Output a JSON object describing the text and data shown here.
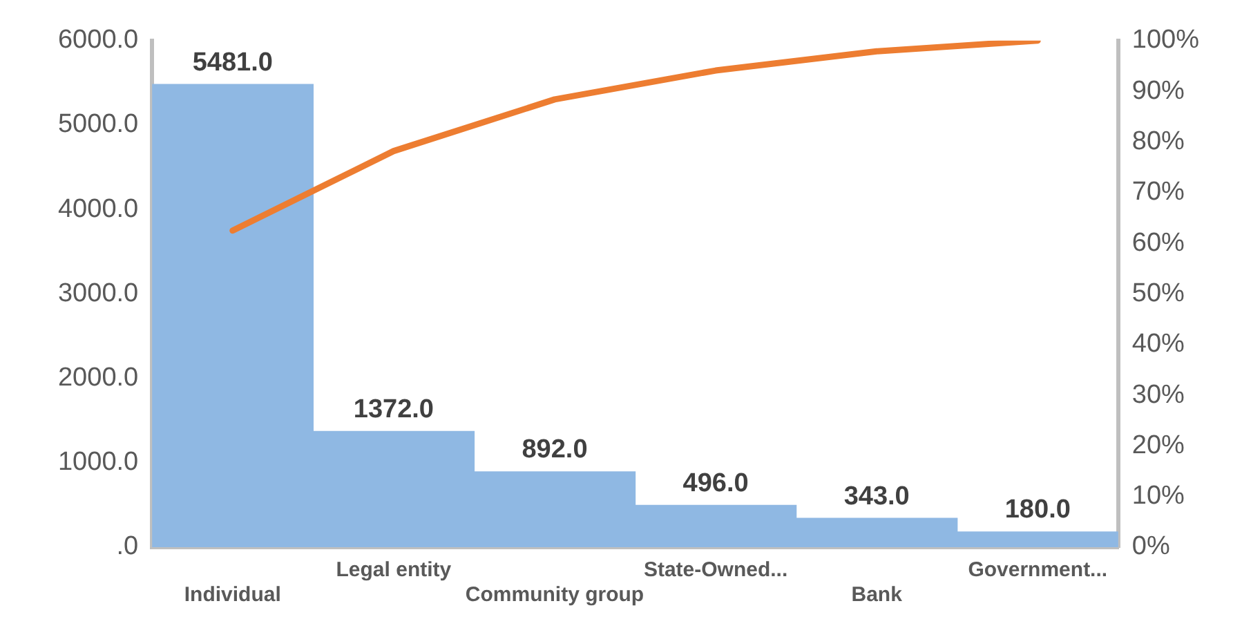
{
  "chart_data": {
    "type": "bar",
    "categories": [
      "Individual",
      "Legal entity",
      "Community group",
      "State-Owned...",
      "Bank",
      "Government..."
    ],
    "series": [
      {
        "color": "#8fb8e3",
        "values": [
          5481,
          1372,
          892,
          496,
          343,
          180
        ],
        "value_labels": [
          "5481.0",
          "1372.0",
          "892.0",
          "496.0",
          "343.0",
          "180.0"
        ]
      },
      {
        "type": "line",
        "axis": "y2",
        "color": "#ed7d31",
        "values": [
          62.5,
          78.2,
          88.4,
          94.1,
          97.9,
          100
        ],
        "marker": "none"
      }
    ],
    "ylim": [
      0,
      6000
    ],
    "yticks": [
      {
        "value": 0,
        "label": ".0"
      },
      {
        "value": 1000,
        "label": "1000.0"
      },
      {
        "value": 2000,
        "label": "2000.0"
      },
      {
        "value": 3000,
        "label": "3000.0"
      },
      {
        "value": 4000,
        "label": "4000.0"
      },
      {
        "value": 5000,
        "label": "5000.0"
      },
      {
        "value": 6000,
        "label": "6000.0"
      }
    ],
    "y2lim": [
      0,
      100
    ],
    "y2ticks": [
      {
        "value": 0,
        "label": "0%"
      },
      {
        "value": 10,
        "label": "10%"
      },
      {
        "value": 20,
        "label": "20%"
      },
      {
        "value": 30,
        "label": "30%"
      },
      {
        "value": 40,
        "label": "40%"
      },
      {
        "value": 50,
        "label": "50%"
      },
      {
        "value": 60,
        "label": "60%"
      },
      {
        "value": 70,
        "label": "70%"
      },
      {
        "value": 80,
        "label": "80%"
      },
      {
        "value": 90,
        "label": "90%"
      },
      {
        "value": 100,
        "label": "100%"
      }
    ],
    "grid": false,
    "legend": false
  }
}
